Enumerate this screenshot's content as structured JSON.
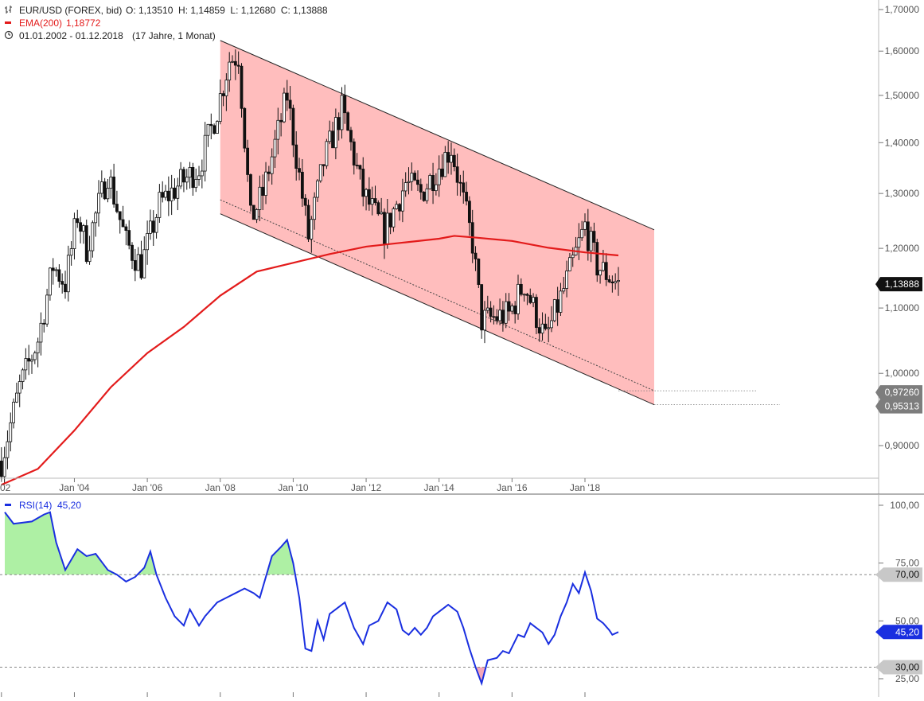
{
  "header": {
    "instrument": "EUR/USD (FOREX, bid)",
    "ohlc": "O: 1,13510  H: 1,14859  L: 1,12680  C: 1,13888",
    "ema_label": "EMA(200)",
    "ema_value": "1,18772",
    "range": "01.01.2002 - 01.12.2018",
    "span": "(17 Jahre, 1 Monat)"
  },
  "rsi_header": {
    "label": "RSI(14)",
    "value": "45,20"
  },
  "colors": {
    "ema": "#e31b1b",
    "channel_fill": "#ffbdbd",
    "rsi": "#1a2fe0",
    "rsi_overbought_fill": "#aef0a4",
    "rsi_oversold_fill": "#f4a6b8",
    "candle": "#111111"
  },
  "chart_data": [
    {
      "type": "candlestick",
      "title": "EUR/USD (FOREX, bid)",
      "x_tick_labels": [
        "02",
        "Jan '04",
        "Jan '06",
        "Jan '08",
        "Jan '10",
        "Jan '12",
        "Jan '14",
        "Jan '16",
        "Jan '18"
      ],
      "y_tick_labels": [
        "1,70000",
        "1,60000",
        "1,50000",
        "1,40000",
        "1,30000",
        "1,20000",
        "1,10000",
        "1,00000",
        "0,90000"
      ],
      "ylim": [
        0.835,
        1.705
      ],
      "scale": "log",
      "last_close_label": "1,13888",
      "channel_end_labels": [
        "0,97260",
        "0,95313"
      ],
      "channel": {
        "upper": [
          {
            "x": "2008-01",
            "y": 1.625
          },
          {
            "x": "2020-01",
            "y": 1.23
          }
        ],
        "lower": [
          {
            "x": "2008-01",
            "y": 1.262
          },
          {
            "x": "2020-01",
            "y": 0.953
          }
        ],
        "dotted": [
          {
            "x": "2008-01",
            "y": 1.288
          },
          {
            "x": "2020-01",
            "y": 0.9726
          }
        ]
      },
      "series": [
        {
          "name": "EUR/USD",
          "close_path": [
            {
              "x": "2002-01",
              "y": 0.88
            },
            {
              "x": "2002-07",
              "y": 0.98
            },
            {
              "x": "2003-01",
              "y": 1.05
            },
            {
              "x": "2003-06",
              "y": 1.17
            },
            {
              "x": "2003-10",
              "y": 1.14
            },
            {
              "x": "2004-02",
              "y": 1.26
            },
            {
              "x": "2004-05",
              "y": 1.2
            },
            {
              "x": "2004-12",
              "y": 1.34
            },
            {
              "x": "2005-06",
              "y": 1.21
            },
            {
              "x": "2005-11",
              "y": 1.17
            },
            {
              "x": "2006-05",
              "y": 1.28
            },
            {
              "x": "2006-12",
              "y": 1.32
            },
            {
              "x": "2007-06",
              "y": 1.35
            },
            {
              "x": "2007-12",
              "y": 1.47
            },
            {
              "x": "2008-04",
              "y": 1.58
            },
            {
              "x": "2008-07",
              "y": 1.59
            },
            {
              "x": "2008-11",
              "y": 1.25
            },
            {
              "x": "2009-03",
              "y": 1.3
            },
            {
              "x": "2009-11",
              "y": 1.5
            },
            {
              "x": "2010-06",
              "y": 1.22
            },
            {
              "x": "2010-11",
              "y": 1.36
            },
            {
              "x": "2011-05",
              "y": 1.47
            },
            {
              "x": "2011-12",
              "y": 1.3
            },
            {
              "x": "2012-07",
              "y": 1.23
            },
            {
              "x": "2013-02",
              "y": 1.32
            },
            {
              "x": "2013-07",
              "y": 1.3
            },
            {
              "x": "2014-05",
              "y": 1.39
            },
            {
              "x": "2014-12",
              "y": 1.21
            },
            {
              "x": "2015-03",
              "y": 1.08
            },
            {
              "x": "2015-12",
              "y": 1.09
            },
            {
              "x": "2016-05",
              "y": 1.14
            },
            {
              "x": "2016-12",
              "y": 1.05
            },
            {
              "x": "2017-06",
              "y": 1.13
            },
            {
              "x": "2018-01",
              "y": 1.24
            },
            {
              "x": "2018-05",
              "y": 1.17
            },
            {
              "x": "2018-12",
              "y": 1.13888
            }
          ]
        },
        {
          "name": "EMA(200)",
          "values": [
            {
              "x": "2002-01",
              "y": 0.85
            },
            {
              "x": "2003-01",
              "y": 0.87
            },
            {
              "x": "2004-01",
              "y": 0.92
            },
            {
              "x": "2005-01",
              "y": 0.98
            },
            {
              "x": "2006-01",
              "y": 1.03
            },
            {
              "x": "2007-01",
              "y": 1.07
            },
            {
              "x": "2008-01",
              "y": 1.12
            },
            {
              "x": "2009-01",
              "y": 1.16
            },
            {
              "x": "2010-01",
              "y": 1.175
            },
            {
              "x": "2011-01",
              "y": 1.19
            },
            {
              "x": "2012-01",
              "y": 1.203
            },
            {
              "x": "2013-01",
              "y": 1.21
            },
            {
              "x": "2014-01",
              "y": 1.217
            },
            {
              "x": "2014-06",
              "y": 1.222
            },
            {
              "x": "2015-01",
              "y": 1.219
            },
            {
              "x": "2016-01",
              "y": 1.213
            },
            {
              "x": "2017-01",
              "y": 1.201
            },
            {
              "x": "2018-01",
              "y": 1.193
            },
            {
              "x": "2018-12",
              "y": 1.18772
            }
          ]
        }
      ]
    },
    {
      "type": "line",
      "title": "RSI(14)",
      "y_tick_labels": [
        "100,00",
        "75,00",
        "50,00",
        "25,00"
      ],
      "ylim": [
        24,
        100
      ],
      "reference_lines": [
        70,
        30
      ],
      "reference_labels": [
        "70,00",
        "30,00"
      ],
      "last_value_label": "45,20",
      "series": [
        {
          "name": "RSI(14)",
          "values": [
            {
              "x": "2002-01",
              "y": 97
            },
            {
              "x": "2002-05",
              "y": 92
            },
            {
              "x": "2002-11",
              "y": 93
            },
            {
              "x": "2003-03",
              "y": 96
            },
            {
              "x": "2003-05",
              "y": 97
            },
            {
              "x": "2003-07",
              "y": 84
            },
            {
              "x": "2003-10",
              "y": 72
            },
            {
              "x": "2004-02",
              "y": 81
            },
            {
              "x": "2004-05",
              "y": 78
            },
            {
              "x": "2004-08",
              "y": 79
            },
            {
              "x": "2004-12",
              "y": 72
            },
            {
              "x": "2005-03",
              "y": 70
            },
            {
              "x": "2005-06",
              "y": 67
            },
            {
              "x": "2005-09",
              "y": 69
            },
            {
              "x": "2005-12",
              "y": 73
            },
            {
              "x": "2006-02",
              "y": 80
            },
            {
              "x": "2006-04",
              "y": 70
            },
            {
              "x": "2006-07",
              "y": 60
            },
            {
              "x": "2006-10",
              "y": 52
            },
            {
              "x": "2007-01",
              "y": 48
            },
            {
              "x": "2007-03",
              "y": 55
            },
            {
              "x": "2007-06",
              "y": 48
            },
            {
              "x": "2007-08",
              "y": 52
            },
            {
              "x": "2007-12",
              "y": 58
            },
            {
              "x": "2008-03",
              "y": 60
            },
            {
              "x": "2008-06",
              "y": 62
            },
            {
              "x": "2008-09",
              "y": 64
            },
            {
              "x": "2008-12",
              "y": 62
            },
            {
              "x": "2009-02",
              "y": 60
            },
            {
              "x": "2009-06",
              "y": 78
            },
            {
              "x": "2009-09",
              "y": 82
            },
            {
              "x": "2009-11",
              "y": 85
            },
            {
              "x": "2010-01",
              "y": 75
            },
            {
              "x": "2010-03",
              "y": 60
            },
            {
              "x": "2010-05",
              "y": 38
            },
            {
              "x": "2010-07",
              "y": 37
            },
            {
              "x": "2010-09",
              "y": 50
            },
            {
              "x": "2010-11",
              "y": 42
            },
            {
              "x": "2011-01",
              "y": 53
            },
            {
              "x": "2011-03",
              "y": 55
            },
            {
              "x": "2011-06",
              "y": 58
            },
            {
              "x": "2011-09",
              "y": 47
            },
            {
              "x": "2011-12",
              "y": 40
            },
            {
              "x": "2012-02",
              "y": 48
            },
            {
              "x": "2012-05",
              "y": 50
            },
            {
              "x": "2012-08",
              "y": 58
            },
            {
              "x": "2012-11",
              "y": 55
            },
            {
              "x": "2013-01",
              "y": 46
            },
            {
              "x": "2013-03",
              "y": 44
            },
            {
              "x": "2013-05",
              "y": 47
            },
            {
              "x": "2013-07",
              "y": 44
            },
            {
              "x": "2013-09",
              "y": 47
            },
            {
              "x": "2013-11",
              "y": 52
            },
            {
              "x": "2014-02",
              "y": 55
            },
            {
              "x": "2014-04",
              "y": 57
            },
            {
              "x": "2014-07",
              "y": 54
            },
            {
              "x": "2014-09",
              "y": 47
            },
            {
              "x": "2014-11",
              "y": 38
            },
            {
              "x": "2015-01",
              "y": 30
            },
            {
              "x": "2015-03",
              "y": 23
            },
            {
              "x": "2015-05",
              "y": 33
            },
            {
              "x": "2015-08",
              "y": 34
            },
            {
              "x": "2015-10",
              "y": 37
            },
            {
              "x": "2015-12",
              "y": 36
            },
            {
              "x": "2016-03",
              "y": 44
            },
            {
              "x": "2016-05",
              "y": 43
            },
            {
              "x": "2016-07",
              "y": 49
            },
            {
              "x": "2016-09",
              "y": 47
            },
            {
              "x": "2016-11",
              "y": 45
            },
            {
              "x": "2017-01",
              "y": 40
            },
            {
              "x": "2017-03",
              "y": 44
            },
            {
              "x": "2017-05",
              "y": 52
            },
            {
              "x": "2017-07",
              "y": 58
            },
            {
              "x": "2017-09",
              "y": 66
            },
            {
              "x": "2017-11",
              "y": 62
            },
            {
              "x": "2018-01",
              "y": 71
            },
            {
              "x": "2018-03",
              "y": 63
            },
            {
              "x": "2018-05",
              "y": 51
            },
            {
              "x": "2018-07",
              "y": 49
            },
            {
              "x": "2018-09",
              "y": 46
            },
            {
              "x": "2018-10",
              "y": 44
            },
            {
              "x": "2018-12",
              "y": 45.2
            }
          ]
        }
      ]
    }
  ]
}
